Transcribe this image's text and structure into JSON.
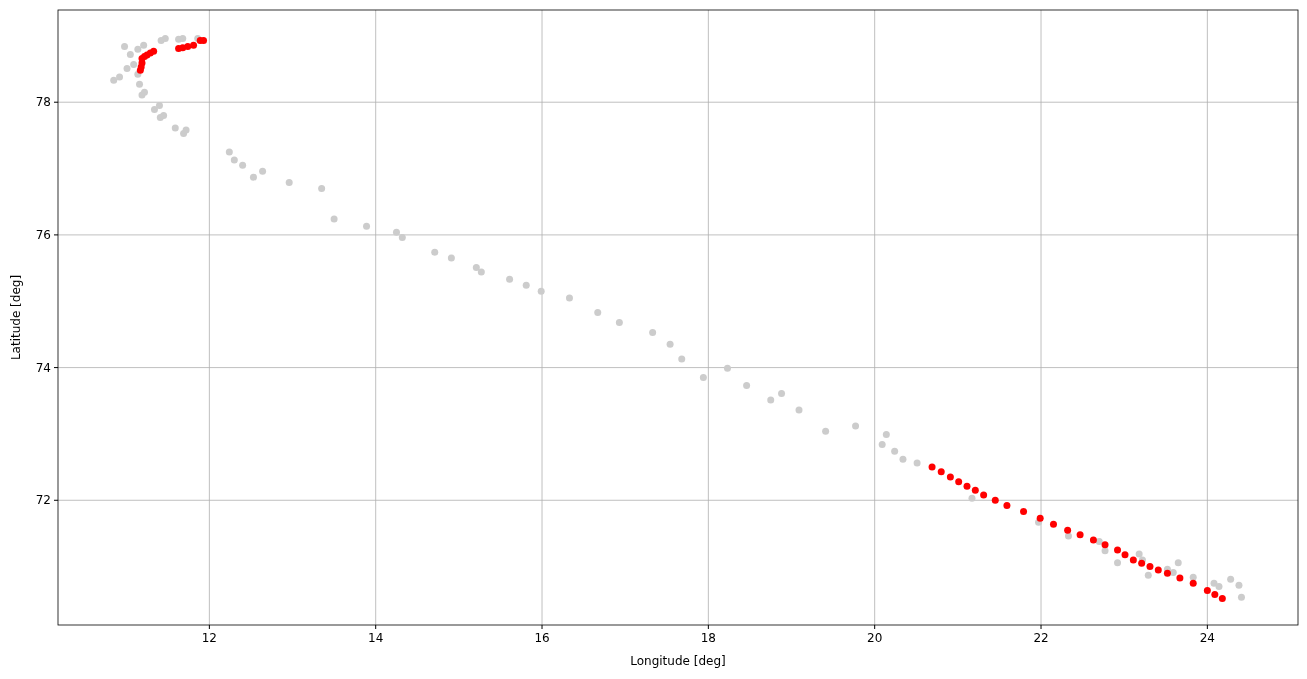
{
  "chart_data": {
    "type": "scatter",
    "xlabel": "Longitude [deg]",
    "ylabel": "Latitude [deg]",
    "xlim": [
      10.18,
      25.09
    ],
    "ylim": [
      70.12,
      79.39
    ],
    "xticks": [
      12,
      14,
      16,
      18,
      20,
      22,
      24
    ],
    "yticks": [
      72,
      74,
      76,
      78
    ],
    "grid": true,
    "marker": "circle",
    "series": [
      {
        "color": "#cccccc",
        "x": [
          10.85,
          10.92,
          10.98,
          11.01,
          11.05,
          11.09,
          11.14,
          11.14,
          11.16,
          11.19,
          11.21,
          11.22,
          11.34,
          11.4,
          11.41,
          11.45,
          11.42,
          11.47,
          11.63,
          11.68,
          11.86,
          11.59,
          11.69,
          11.72,
          12.24,
          12.3,
          12.4,
          12.53,
          12.64,
          12.96,
          13.35,
          13.5,
          13.89,
          14.25,
          14.32,
          14.71,
          14.91,
          15.21,
          15.27,
          15.61,
          15.81,
          15.99,
          16.33,
          16.67,
          16.93,
          17.33,
          17.54,
          17.68,
          17.94,
          18.23,
          18.46,
          18.75,
          18.88,
          19.09,
          19.41,
          19.77,
          20.09,
          20.14,
          20.24,
          20.34,
          20.51,
          21.17,
          21.97,
          22.33,
          22.7,
          22.77,
          22.92,
          23.18,
          23.22,
          23.29,
          23.52,
          23.59,
          23.65,
          23.83,
          24.08,
          24.14,
          24.28,
          24.38,
          24.41
        ],
        "values": [
          78.33,
          78.38,
          78.84,
          78.51,
          78.72,
          78.57,
          78.8,
          78.42,
          78.27,
          78.11,
          78.86,
          78.15,
          77.89,
          77.95,
          77.77,
          77.8,
          78.93,
          78.96,
          78.95,
          78.96,
          78.96,
          77.61,
          77.53,
          77.58,
          77.25,
          77.13,
          77.05,
          76.87,
          76.96,
          76.79,
          76.7,
          76.24,
          76.13,
          76.04,
          75.96,
          75.74,
          75.65,
          75.51,
          75.44,
          75.33,
          75.24,
          75.15,
          75.05,
          74.83,
          74.68,
          74.53,
          74.35,
          74.13,
          73.85,
          73.99,
          73.73,
          73.51,
          73.61,
          73.36,
          73.04,
          73.12,
          72.84,
          72.99,
          72.74,
          72.62,
          72.56,
          72.03,
          71.67,
          71.46,
          71.38,
          71.24,
          71.06,
          71.19,
          71.1,
          70.87,
          70.96,
          70.91,
          71.06,
          70.84,
          70.75,
          70.7,
          70.81,
          70.72,
          70.54
        ]
      },
      {
        "color": "#ff0000",
        "x": [
          11.17,
          11.18,
          11.19,
          11.19,
          11.22,
          11.25,
          11.29,
          11.33,
          11.63,
          11.68,
          11.74,
          11.81,
          11.89,
          11.93,
          20.69,
          20.8,
          20.91,
          21.01,
          21.11,
          21.21,
          21.31,
          21.45,
          21.59,
          21.79,
          21.99,
          22.15,
          22.32,
          22.47,
          22.63,
          22.77,
          22.92,
          23.01,
          23.11,
          23.21,
          23.31,
          23.41,
          23.52,
          23.67,
          23.83,
          24.0,
          24.09,
          24.18
        ],
        "values": [
          78.48,
          78.53,
          78.59,
          78.66,
          78.69,
          78.71,
          78.74,
          78.77,
          78.81,
          78.82,
          78.84,
          78.86,
          78.93,
          78.93,
          72.5,
          72.43,
          72.35,
          72.28,
          72.21,
          72.15,
          72.08,
          72.0,
          71.92,
          71.83,
          71.73,
          71.64,
          71.55,
          71.48,
          71.4,
          71.33,
          71.25,
          71.18,
          71.1,
          71.05,
          71.0,
          70.95,
          70.9,
          70.83,
          70.75,
          70.64,
          70.58,
          70.52
        ]
      }
    ]
  }
}
